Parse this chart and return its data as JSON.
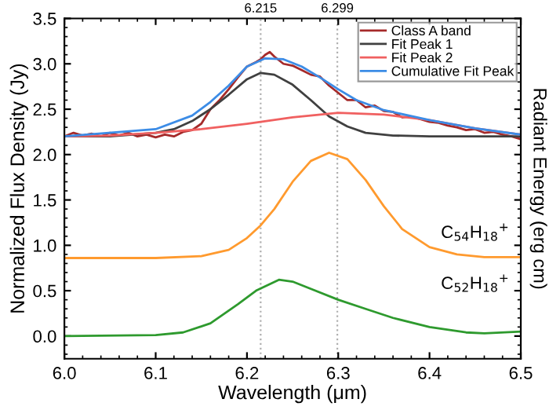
{
  "chart_data": {
    "type": "line",
    "xlabel": "Wavelength (μm)",
    "ylabel": "Normalized Flux Density (Jy)",
    "y2label": "Radiant Energy (erg cm)",
    "xlim": [
      6.0,
      6.5
    ],
    "xticks": [
      {
        "value": 6,
        "label": "6.0"
      },
      6.1,
      6.2,
      6.3,
      6.4,
      6.5
    ],
    "ylim": [
      -0.25,
      3.5
    ],
    "yticks": [
      {
        "value": 0,
        "label": "0.0"
      },
      0.5,
      {
        "value": 1,
        "label": "1.0"
      },
      1.5,
      {
        "value": 2,
        "label": "2.0"
      },
      2.5,
      {
        "value": 3,
        "label": "3.0"
      },
      3.5
    ],
    "grid": false,
    "legend": "top right",
    "line_style": "solid",
    "marker": "none",
    "ref_lines": [
      {
        "axis": "x",
        "value": 6.215,
        "label": "6.215",
        "color": "#b0b0b0",
        "line_style": "dotted"
      },
      {
        "axis": "x",
        "value": 6.299,
        "label": "6.299",
        "color": "#b0b0b0",
        "line_style": "dotted"
      }
    ],
    "annotations": [
      "C$_{54}$H$_{18}$$^{+}$",
      "C$_{52}$H$_{18}$$^{+}$"
    ],
    "series": [
      {
        "name": "Class A band",
        "color": "#a52a2a",
        "x": [
          6.0,
          6.01,
          6.02,
          6.03,
          6.04,
          6.05,
          6.06,
          6.07,
          6.08,
          6.09,
          6.1,
          6.11,
          6.12,
          6.13,
          6.14,
          6.15,
          6.16,
          6.17,
          6.18,
          6.19,
          6.2,
          6.21,
          6.215,
          6.22,
          6.225,
          6.23,
          6.24,
          6.25,
          6.26,
          6.27,
          6.28,
          6.29,
          6.3,
          6.31,
          6.32,
          6.33,
          6.34,
          6.35,
          6.36,
          6.37,
          6.38,
          6.39,
          6.4,
          6.41,
          6.42,
          6.43,
          6.44,
          6.45,
          6.46,
          6.47,
          6.48,
          6.49,
          6.5
        ],
        "values": [
          2.2,
          2.24,
          2.21,
          2.23,
          2.2,
          2.24,
          2.21,
          2.24,
          2.2,
          2.22,
          2.19,
          2.22,
          2.2,
          2.25,
          2.27,
          2.34,
          2.5,
          2.6,
          2.72,
          2.85,
          2.97,
          3.02,
          3.05,
          3.1,
          3.13,
          3.08,
          3.0,
          2.98,
          2.93,
          2.88,
          2.86,
          2.76,
          2.68,
          2.6,
          2.6,
          2.52,
          2.54,
          2.48,
          2.47,
          2.41,
          2.42,
          2.39,
          2.36,
          2.35,
          2.32,
          2.3,
          2.27,
          2.28,
          2.24,
          2.25,
          2.22,
          2.2,
          2.17
        ]
      },
      {
        "name": "Fit Peak 1",
        "color": "#404040",
        "x": [
          6.0,
          6.05,
          6.1,
          6.12,
          6.14,
          6.16,
          6.18,
          6.2,
          6.215,
          6.23,
          6.25,
          6.27,
          6.29,
          6.31,
          6.33,
          6.36,
          6.4,
          6.5
        ],
        "values": [
          2.2,
          2.2,
          2.24,
          2.28,
          2.37,
          2.5,
          2.66,
          2.83,
          2.9,
          2.88,
          2.77,
          2.6,
          2.42,
          2.31,
          2.24,
          2.21,
          2.2,
          2.2
        ]
      },
      {
        "name": "Fit Peak 2",
        "color": "#f06060",
        "x": [
          6.0,
          6.05,
          6.1,
          6.15,
          6.2,
          6.25,
          6.3,
          6.35,
          6.4,
          6.45,
          6.5
        ],
        "values": [
          2.2,
          2.21,
          2.24,
          2.28,
          2.34,
          2.41,
          2.46,
          2.44,
          2.38,
          2.29,
          2.22
        ]
      },
      {
        "name": "Cumulative Fit Peak",
        "color": "#3c8ce6",
        "x": [
          6.0,
          6.1,
          6.14,
          6.16,
          6.18,
          6.2,
          6.22,
          6.24,
          6.26,
          6.28,
          6.3,
          6.32,
          6.35,
          6.4,
          6.45,
          6.5
        ],
        "values": [
          2.2,
          2.28,
          2.43,
          2.58,
          2.76,
          2.97,
          3.06,
          3.05,
          2.97,
          2.85,
          2.72,
          2.6,
          2.49,
          2.38,
          2.29,
          2.22
        ]
      },
      {
        "color": "#ff9a2e",
        "x": [
          6.0,
          6.1,
          6.15,
          6.18,
          6.2,
          6.215,
          6.23,
          6.25,
          6.27,
          6.29,
          6.31,
          6.33,
          6.35,
          6.37,
          6.4,
          6.43,
          6.46,
          6.5
        ],
        "values": [
          0.86,
          0.86,
          0.88,
          0.95,
          1.08,
          1.22,
          1.4,
          1.7,
          1.93,
          2.02,
          1.95,
          1.72,
          1.43,
          1.18,
          0.98,
          0.9,
          0.87,
          0.87
        ]
      },
      {
        "color": "#2e9a2e",
        "x": [
          6.0,
          6.1,
          6.13,
          6.16,
          6.19,
          6.21,
          6.235,
          6.25,
          6.27,
          6.3,
          6.33,
          6.36,
          6.4,
          6.44,
          6.46,
          6.5
        ],
        "values": [
          0.0,
          0.01,
          0.04,
          0.14,
          0.35,
          0.5,
          0.62,
          0.6,
          0.52,
          0.4,
          0.3,
          0.2,
          0.1,
          0.04,
          0.03,
          0.05
        ]
      }
    ]
  }
}
